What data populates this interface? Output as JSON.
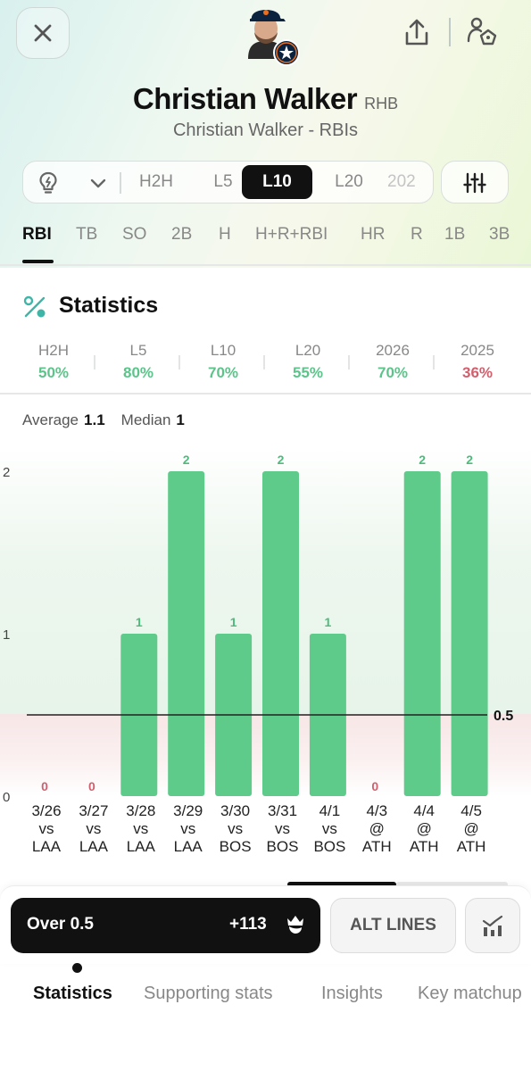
{
  "player": {
    "name": "Christian Walker",
    "hand": "RHB",
    "subtitle": "Christian Walker - RBIs",
    "team_color": "#0c2340"
  },
  "header": {
    "close_icon": "close-icon",
    "share_icon": "share-icon",
    "player_action_icon": "player-add-icon"
  },
  "range_filter": {
    "items": [
      "H2H",
      "L5",
      "L10",
      "L20",
      "202"
    ],
    "selected": "L10"
  },
  "stat_tabs": [
    "RBI",
    "TB",
    "SO",
    "2B",
    "H",
    "H+R+RBI",
    "HR",
    "R",
    "1B",
    "3B"
  ],
  "stat_tab_selected": "RBI",
  "statistics": {
    "title": "Statistics",
    "hit_rates": [
      {
        "label": "H2H",
        "value": "50%",
        "color": "#5cc48a"
      },
      {
        "label": "L5",
        "value": "80%",
        "color": "#5cc48a"
      },
      {
        "label": "L10",
        "value": "70%",
        "color": "#5cc48a"
      },
      {
        "label": "L20",
        "value": "55%",
        "color": "#5cc48a"
      },
      {
        "label": "2026",
        "value": "70%",
        "color": "#5cc48a"
      },
      {
        "label": "2025",
        "value": "36%",
        "color": "#d0606e"
      }
    ],
    "average_label": "Average",
    "average_value": "1.1",
    "median_label": "Median",
    "median_value": "1"
  },
  "chart_data": {
    "type": "bar",
    "categories": [
      [
        "3/26",
        "vs",
        "LAA"
      ],
      [
        "3/27",
        "vs",
        "LAA"
      ],
      [
        "3/28",
        "vs",
        "LAA"
      ],
      [
        "3/29",
        "vs",
        "LAA"
      ],
      [
        "3/30",
        "vs",
        "BOS"
      ],
      [
        "3/31",
        "vs",
        "BOS"
      ],
      [
        "4/1",
        "vs",
        "BOS"
      ],
      [
        "4/3",
        "@",
        "ATH"
      ],
      [
        "4/4",
        "@",
        "ATH"
      ],
      [
        "4/5",
        "@",
        "ATH"
      ]
    ],
    "values": [
      0,
      0,
      1,
      2,
      1,
      2,
      1,
      0,
      2,
      2
    ],
    "ylim": [
      0,
      2
    ],
    "yticks": [
      0,
      1,
      2
    ],
    "line": 0.5,
    "line_label": "0.5",
    "bar_color": "#5fcb8a",
    "zero_label_color": "#d0606e",
    "grid": false
  },
  "bet": {
    "line_label": "Over 0.5",
    "odds": "+113",
    "alt_lines_label": "ALT LINES"
  },
  "bottom_tabs": [
    "Statistics",
    "Supporting stats",
    "Insights",
    "Key matchup"
  ],
  "bottom_tab_selected": "Statistics"
}
